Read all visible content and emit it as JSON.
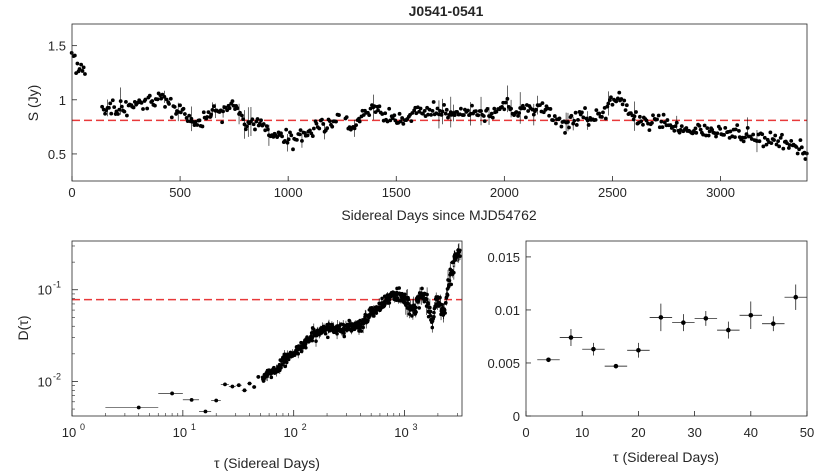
{
  "figure_title": "J0541-0541",
  "colors": {
    "points": "#000000",
    "reference_line": "#e8393a",
    "axis": "#262626"
  },
  "chart_data": [
    {
      "id": "flux",
      "type": "scatter",
      "title": "J0541-0541",
      "xlabel": "Sidereal Days since MJD54762",
      "ylabel": "S (Jy)",
      "xlim": [
        0,
        3400
      ],
      "ylim": [
        0.25,
        1.7
      ],
      "xticks": [
        "0",
        "500",
        "1000",
        "1500",
        "2000",
        "2500",
        "3000"
      ],
      "yticks": [
        "0.5",
        "1",
        "1.5"
      ],
      "reference_line": {
        "y": 0.81,
        "style": "dashed",
        "color": "#e8393a"
      },
      "trend_knots": {
        "x": [
          0,
          5,
          20,
          30,
          50,
          140,
          200,
          300,
          380,
          420,
          460,
          520,
          560,
          600,
          650,
          700,
          740,
          800,
          880,
          950,
          1000,
          1050,
          1100,
          1150,
          1200,
          1250,
          1300,
          1350,
          1400,
          1450,
          1500,
          1550,
          1600,
          1650,
          1700,
          1800,
          1900,
          1950,
          2000,
          2050,
          2100,
          2150,
          2200,
          2250,
          2300,
          2350,
          2400,
          2450,
          2500,
          2520,
          2560,
          2600,
          2650,
          2700,
          2800,
          2900,
          3000,
          3100,
          3200,
          3300,
          3400
        ],
        "y": [
          1.42,
          1.45,
          1.25,
          1.27,
          1.3,
          0.92,
          0.9,
          0.98,
          1.0,
          1.05,
          0.92,
          0.88,
          0.8,
          0.78,
          0.88,
          0.88,
          0.98,
          0.82,
          0.76,
          0.65,
          0.62,
          0.66,
          0.72,
          0.75,
          0.78,
          0.85,
          0.75,
          0.88,
          0.93,
          0.83,
          0.8,
          0.84,
          0.9,
          0.9,
          0.9,
          0.88,
          0.88,
          0.86,
          0.98,
          0.86,
          0.9,
          0.92,
          0.9,
          0.82,
          0.78,
          0.85,
          0.82,
          0.84,
          1.0,
          1.03,
          0.95,
          0.85,
          0.8,
          0.8,
          0.72,
          0.72,
          0.7,
          0.68,
          0.63,
          0.62,
          0.52
        ]
      },
      "point_count": 560
    },
    {
      "id": "structure-function",
      "type": "scatter",
      "xscale": "log",
      "yscale": "log",
      "xlabel": "τ (Sidereal Days)",
      "ylabel": "D(τ)",
      "xlim": [
        1,
        3300
      ],
      "ylim": [
        0.0042,
        0.34
      ],
      "xticks": [
        {
          "value": 1,
          "base": "10",
          "exp": "0"
        },
        {
          "value": 10,
          "base": "10",
          "exp": "1"
        },
        {
          "value": 100,
          "base": "10",
          "exp": "2"
        },
        {
          "value": 1000,
          "base": "10",
          "exp": "3"
        }
      ],
      "yticks": [
        {
          "value": 0.01,
          "base": "10",
          "exp": "-2"
        },
        {
          "value": 0.1,
          "base": "10",
          "exp": "-1"
        }
      ],
      "reference_line": {
        "y": 0.078,
        "style": "dashed",
        "color": "#e8393a"
      },
      "x": [
        4,
        8,
        12,
        16,
        20,
        24,
        28,
        32,
        36,
        40,
        44,
        48
      ],
      "y": [
        0.0052,
        0.0074,
        0.0063,
        0.0047,
        0.0062,
        0.0093,
        0.0088,
        0.0091,
        0.008,
        0.0095,
        0.0087,
        0.0112
      ],
      "trend_knots": {
        "logx": [
          1.72,
          1.85,
          2.0,
          2.1,
          2.2,
          2.3,
          2.45,
          2.6,
          2.7,
          2.8,
          2.9,
          2.95,
          3.0,
          3.05,
          3.1,
          3.15,
          3.2,
          3.25,
          3.3,
          3.35,
          3.4,
          3.45,
          3.5
        ],
        "y": [
          0.011,
          0.014,
          0.02,
          0.026,
          0.033,
          0.038,
          0.037,
          0.042,
          0.055,
          0.07,
          0.088,
          0.09,
          0.08,
          0.063,
          0.062,
          0.09,
          0.07,
          0.045,
          0.085,
          0.05,
          0.11,
          0.2,
          0.28
        ]
      },
      "point_count": 520
    },
    {
      "id": "structure-function-zoom",
      "type": "scatter",
      "xlabel": "τ (Sidereal Days)",
      "ylabel": "",
      "xlim": [
        0,
        50
      ],
      "ylim": [
        0,
        0.0165
      ],
      "xticks": [
        "0",
        "10",
        "20",
        "30",
        "40",
        "50"
      ],
      "yticks": [
        "0",
        "0.005",
        "0.01",
        "0.015"
      ],
      "x": [
        4,
        8,
        12,
        16,
        20,
        24,
        28,
        32,
        36,
        40,
        44,
        48
      ],
      "y": [
        0.0053,
        0.0074,
        0.0063,
        0.0047,
        0.0062,
        0.0093,
        0.0088,
        0.0092,
        0.0081,
        0.0095,
        0.0087,
        0.0112
      ],
      "yerr": [
        0.0002,
        0.0008,
        0.0006,
        0.0002,
        0.0007,
        0.0013,
        0.0008,
        0.0007,
        0.0008,
        0.0013,
        0.0007,
        0.0012
      ],
      "xerr": 2
    }
  ]
}
